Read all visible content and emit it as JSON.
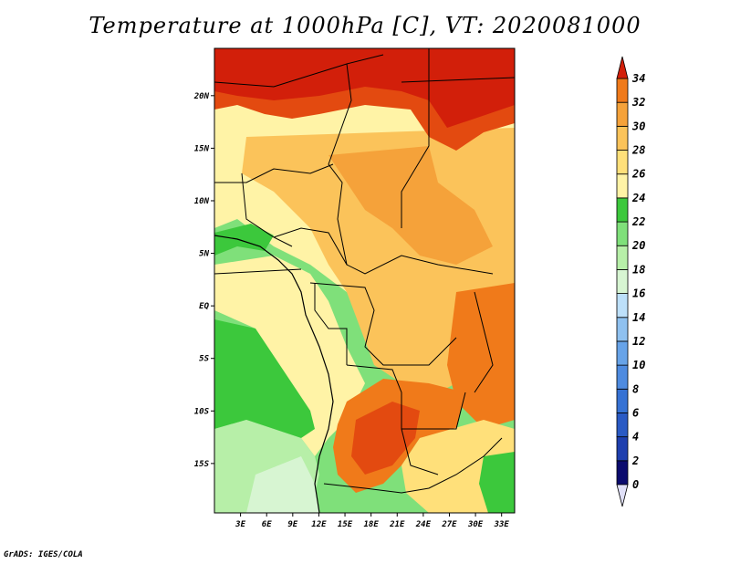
{
  "title": "Temperature at 1000hPa [C], VT: 2020081000",
  "credit": "GrADS: IGES/COLA",
  "map": {
    "lat_labels": [
      {
        "lat": 20,
        "label": "20N"
      },
      {
        "lat": 15,
        "label": "15N"
      },
      {
        "lat": 10,
        "label": "10N"
      },
      {
        "lat": 5,
        "label": "5N"
      },
      {
        "lat": 0,
        "label": "EQ"
      },
      {
        "lat": -5,
        "label": "5S"
      },
      {
        "lat": -10,
        "label": "10S"
      },
      {
        "lat": -15,
        "label": "15S"
      }
    ],
    "lon_labels": [
      {
        "lon": 3,
        "label": "3E"
      },
      {
        "lon": 6,
        "label": "6E"
      },
      {
        "lon": 9,
        "label": "9E"
      },
      {
        "lon": 12,
        "label": "12E"
      },
      {
        "lon": 15,
        "label": "15E"
      },
      {
        "lon": 18,
        "label": "18E"
      },
      {
        "lon": 21,
        "label": "21E"
      },
      {
        "lon": 24,
        "label": "24E"
      },
      {
        "lon": 27,
        "label": "27E"
      },
      {
        "lon": 30,
        "label": "30E"
      },
      {
        "lon": 33,
        "label": "33E"
      }
    ]
  },
  "colorbar": {
    "labels": [
      "0",
      "2",
      "4",
      "6",
      "8",
      "10",
      "12",
      "14",
      "16",
      "18",
      "20",
      "22",
      "24",
      "26",
      "28",
      "30",
      "32",
      "34"
    ],
    "colors": [
      "#0b0b6e",
      "#1e3fae",
      "#2a5ac4",
      "#3672d4",
      "#4e8be0",
      "#67a3e8",
      "#8fc1f0",
      "#bde0fa",
      "#d7f5d2",
      "#b7efa8",
      "#7fe07a",
      "#3cc83c",
      "#fff3a6",
      "#ffe07a",
      "#fbc35a",
      "#f5a23a",
      "#f07a1a",
      "#e34a10",
      "#d21f0a"
    ],
    "low_arrow_color": "#e0e0f8",
    "high_arrow_color": "#d21f0a"
  }
}
